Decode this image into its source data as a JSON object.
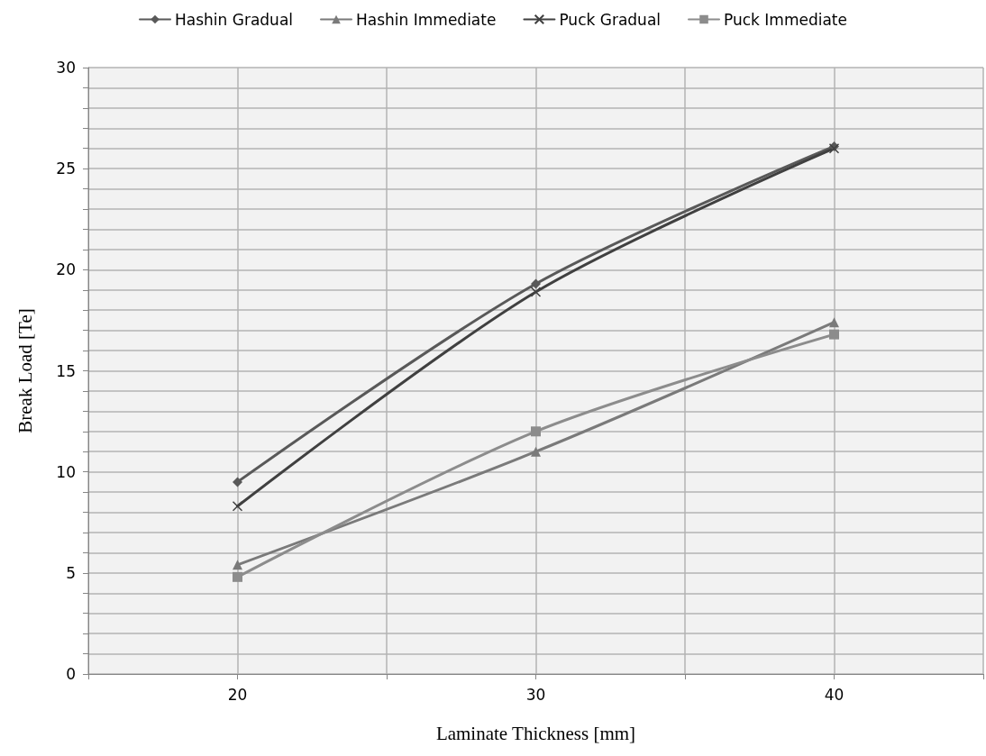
{
  "chart_data": {
    "type": "line",
    "xlabel": "Laminate Thickness [mm]",
    "ylabel": "Break Load [Te]",
    "x": [
      20,
      30,
      40
    ],
    "series": [
      {
        "name": "Hashin Gradual",
        "color": "#595959",
        "marker": "diamond",
        "values": [
          9.5,
          19.3,
          26.1
        ]
      },
      {
        "name": "Hashin Immediate",
        "color": "#7a7a7a",
        "marker": "triangle",
        "values": [
          5.4,
          11.0,
          17.4
        ]
      },
      {
        "name": "Puck Gradual",
        "color": "#404040",
        "marker": "cross",
        "values": [
          8.3,
          18.9,
          26.0
        ]
      },
      {
        "name": "Puck Immediate",
        "color": "#8c8c8c",
        "marker": "square",
        "values": [
          4.8,
          12.0,
          16.8
        ]
      }
    ],
    "xlim": [
      15,
      45
    ],
    "xticks": [
      {
        "value": 15,
        "label": null
      },
      20,
      {
        "value": 25,
        "label": null
      },
      30,
      {
        "value": 35,
        "label": null
      },
      40,
      {
        "value": 45,
        "label": null
      }
    ],
    "ylim": [
      0,
      30
    ],
    "yticks": [
      0,
      {
        "value": 1,
        "label": null
      },
      {
        "value": 2,
        "label": null
      },
      {
        "value": 3,
        "label": null
      },
      {
        "value": 4,
        "label": null
      },
      5,
      {
        "value": 6,
        "label": null
      },
      {
        "value": 7,
        "label": null
      },
      {
        "value": 8,
        "label": null
      },
      {
        "value": 9,
        "label": null
      },
      10,
      {
        "value": 11,
        "label": null
      },
      {
        "value": 12,
        "label": null
      },
      {
        "value": 13,
        "label": null
      },
      {
        "value": 14,
        "label": null
      },
      15,
      {
        "value": 16,
        "label": null
      },
      {
        "value": 17,
        "label": null
      },
      {
        "value": 18,
        "label": null
      },
      {
        "value": 19,
        "label": null
      },
      20,
      {
        "value": 21,
        "label": null
      },
      {
        "value": 22,
        "label": null
      },
      {
        "value": 23,
        "label": null
      },
      {
        "value": 24,
        "label": null
      },
      25,
      {
        "value": 26,
        "label": null
      },
      {
        "value": 27,
        "label": null
      },
      {
        "value": 28,
        "label": null
      },
      {
        "value": 29,
        "label": null
      },
      30
    ],
    "grid": true,
    "legend": "top",
    "line_style": "solid"
  }
}
